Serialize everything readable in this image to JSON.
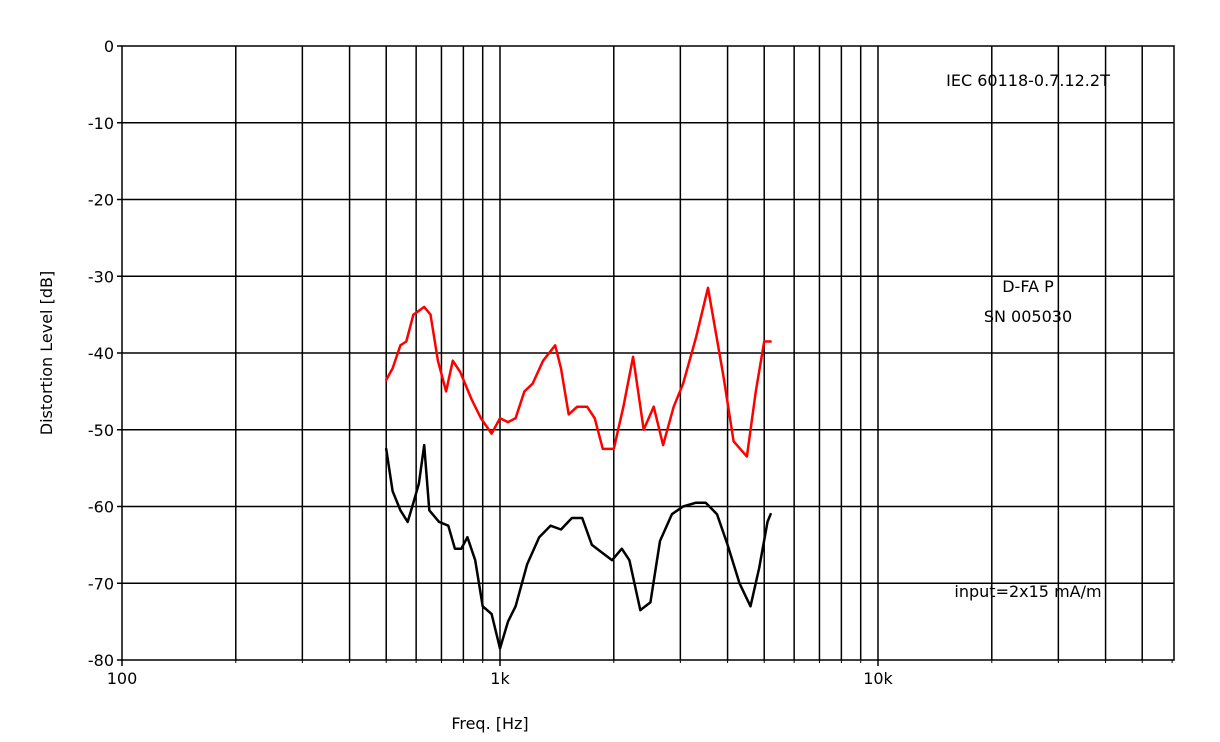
{
  "chart_data": {
    "type": "line",
    "xlabel": "Freq. [Hz]",
    "ylabel": "Distortion Level [dB]",
    "xscale": "log",
    "xlim": [
      100,
      60000
    ],
    "ylim": [
      -80,
      0
    ],
    "grid": true,
    "x_ticks": [
      {
        "value": 100,
        "label": "100"
      },
      {
        "value": 1000,
        "label": "1k"
      },
      {
        "value": 10000,
        "label": "10k"
      }
    ],
    "y_ticks": [
      {
        "value": 0,
        "label": "0"
      },
      {
        "value": -10,
        "label": "-10"
      },
      {
        "value": -20,
        "label": "-20"
      },
      {
        "value": -30,
        "label": "-30"
      },
      {
        "value": -40,
        "label": "-40"
      },
      {
        "value": -50,
        "label": "-50"
      },
      {
        "value": -60,
        "label": "-60"
      },
      {
        "value": -70,
        "label": "-70"
      },
      {
        "value": -80,
        "label": "-80"
      }
    ],
    "annotations": {
      "standard": "IEC 60118-0.7.12.2T",
      "device_name": "D-FA P",
      "serial": "SN 005030",
      "input": "input=2x15 mA/m"
    },
    "series": [
      {
        "color": "#ff0000",
        "x": [
          500,
          520,
          545,
          565,
          590,
          610,
          630,
          655,
          685,
          720,
          750,
          785,
          840,
          890,
          950,
          1000,
          1050,
          1100,
          1160,
          1220,
          1300,
          1400,
          1450,
          1520,
          1600,
          1700,
          1780,
          1870,
          2000,
          2120,
          2250,
          2400,
          2550,
          2700,
          2880,
          3050,
          3300,
          3550,
          3900,
          4150,
          4500,
          4750,
          5000,
          5200
        ],
        "y": [
          -43.5,
          -42,
          -39,
          -38.5,
          -35,
          -34.5,
          -34,
          -35,
          -41,
          -45,
          -41,
          -42.5,
          -46,
          -48.5,
          -50.5,
          -48.5,
          -49,
          -48.5,
          -45,
          -44,
          -41,
          -39,
          -42,
          -48,
          -47,
          -47,
          -48.5,
          -52.5,
          -52.5,
          -47,
          -40.5,
          -50,
          -47,
          -52,
          -47,
          -44,
          -38,
          -31.5,
          -43,
          -51.5,
          -53.5,
          -45,
          -38.5,
          -38.5
        ]
      },
      {
        "color": "#000000",
        "x": [
          500,
          520,
          545,
          570,
          590,
          610,
          630,
          650,
          690,
          730,
          760,
          790,
          820,
          860,
          900,
          950,
          1000,
          1050,
          1100,
          1180,
          1270,
          1360,
          1450,
          1550,
          1650,
          1750,
          1860,
          1980,
          2100,
          2200,
          2350,
          2500,
          2650,
          2850,
          3050,
          3300,
          3500,
          3750,
          4000,
          4300,
          4600,
          4850,
          5100,
          5200
        ],
        "y": [
          -52.5,
          -58,
          -60.5,
          -62,
          -59.5,
          -57,
          -52,
          -60.5,
          -62,
          -62.5,
          -65.5,
          -65.5,
          -64,
          -67,
          -73,
          -74,
          -78.5,
          -75,
          -73,
          -67.5,
          -64,
          -62.5,
          -63,
          -61.5,
          -61.5,
          -65,
          -66,
          -67,
          -65.5,
          -67,
          -73.5,
          -72.5,
          -64.5,
          -61,
          -60,
          -59.5,
          -59.5,
          -61,
          -65,
          -70,
          -73,
          -68,
          -62,
          -61
        ]
      }
    ]
  }
}
